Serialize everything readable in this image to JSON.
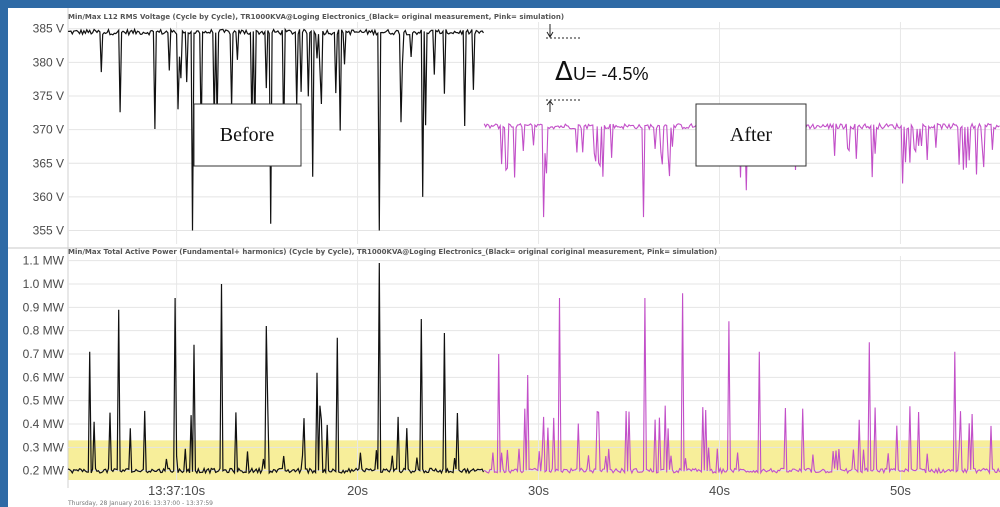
{
  "chart_data": [
    {
      "type": "line",
      "title": "Min/Max L12 RMS Voltage (Cycle by Cycle), TR1000KVA@Loging Electronics_(Black= original measurement, Pink= simulation)",
      "ylabel": "",
      "xlabel": "",
      "ylim": [
        353,
        386
      ],
      "yticks": [
        "385 V",
        "380 V",
        "375 V",
        "370 V",
        "365 V",
        "360 V",
        "355 V"
      ],
      "ytick_values": [
        385,
        380,
        375,
        370,
        365,
        360,
        355
      ],
      "series": [
        {
          "name": "original measurement",
          "color": "#111111",
          "x_range": [
            4.0,
            27.0
          ],
          "baseline": 384.5,
          "typical_dip_min": 368,
          "deep_dips": [
            {
              "x": 10.9,
              "y": 355
            },
            {
              "x": 15.2,
              "y": 356
            },
            {
              "x": 17.5,
              "y": 363
            },
            {
              "x": 21.2,
              "y": 355
            },
            {
              "x": 23.6,
              "y": 360
            }
          ]
        },
        {
          "name": "simulation",
          "color": "#c24fc8",
          "x_range": [
            27.0,
            55.5
          ],
          "baseline": 370.5,
          "typical_dip_min": 365,
          "deep_dips": [
            {
              "x": 28.2,
              "y": 364
            },
            {
              "x": 30.3,
              "y": 357
            },
            {
              "x": 33.6,
              "y": 363
            },
            {
              "x": 35.8,
              "y": 357
            },
            {
              "x": 41.5,
              "y": 361
            },
            {
              "x": 44.2,
              "y": 364
            },
            {
              "x": 50.1,
              "y": 362
            }
          ]
        }
      ],
      "annotations": {
        "before": "Before",
        "after": "After",
        "delta_u": "U= -4.5%",
        "delta_symbol": "Δ"
      }
    },
    {
      "type": "line",
      "title": "Min/Max Total Active Power (Fundamental+ harmonics) (Cycle by Cycle), TR1000KVA@Loging Electronics_(Black= original coriginal measurement, Pink= simulation)",
      "ylabel": "",
      "xlabel": "",
      "ylim": [
        0.16,
        1.12
      ],
      "yticks": [
        "1.1 MW",
        "1.0 MW",
        "0.9 MW",
        "0.8 MW",
        "0.7 MW",
        "0.6 MW",
        "0.5 MW",
        "0.4 MW",
        "0.3 MW",
        "0.2 MW"
      ],
      "ytick_values": [
        1.1,
        1.0,
        0.9,
        0.8,
        0.7,
        0.6,
        0.5,
        0.4,
        0.3,
        0.2
      ],
      "highlight_band": {
        "from": 0.16,
        "to": 0.33,
        "color": "#f7ee9a"
      },
      "series": [
        {
          "name": "original measurement",
          "color": "#111111",
          "x_range": [
            4.0,
            27.0
          ],
          "baseline": 0.2,
          "peaks": [
            {
              "x": 5.2,
              "y": 0.71
            },
            {
              "x": 6.8,
              "y": 0.89
            },
            {
              "x": 9.9,
              "y": 0.94
            },
            {
              "x": 11.0,
              "y": 0.74
            },
            {
              "x": 12.5,
              "y": 1.0
            },
            {
              "x": 15.0,
              "y": 0.82
            },
            {
              "x": 17.8,
              "y": 0.62
            },
            {
              "x": 18.9,
              "y": 0.77
            },
            {
              "x": 21.2,
              "y": 1.09
            },
            {
              "x": 23.5,
              "y": 0.85
            },
            {
              "x": 24.8,
              "y": 0.79
            }
          ]
        },
        {
          "name": "simulation",
          "color": "#c24fc8",
          "x_range": [
            27.0,
            55.5
          ],
          "baseline": 0.2,
          "peaks": [
            {
              "x": 27.8,
              "y": 0.7
            },
            {
              "x": 29.4,
              "y": 0.61
            },
            {
              "x": 31.2,
              "y": 0.94
            },
            {
              "x": 35.9,
              "y": 0.94
            },
            {
              "x": 38.0,
              "y": 0.96
            },
            {
              "x": 40.5,
              "y": 0.84
            },
            {
              "x": 42.2,
              "y": 0.71
            },
            {
              "x": 48.3,
              "y": 0.75
            },
            {
              "x": 53.0,
              "y": 0.71
            }
          ]
        }
      ]
    }
  ],
  "x_axis": {
    "range": [
      4.0,
      55.5
    ],
    "ticks": [
      {
        "value": 10,
        "label": "13:37:10s"
      },
      {
        "value": 20,
        "label": "20s"
      },
      {
        "value": 30,
        "label": "30s"
      },
      {
        "value": 40,
        "label": "40s"
      },
      {
        "value": 50,
        "label": "50s"
      }
    ]
  },
  "footer": "Thursday, 28 January 2016: 13:37:00 - 13:37:59"
}
